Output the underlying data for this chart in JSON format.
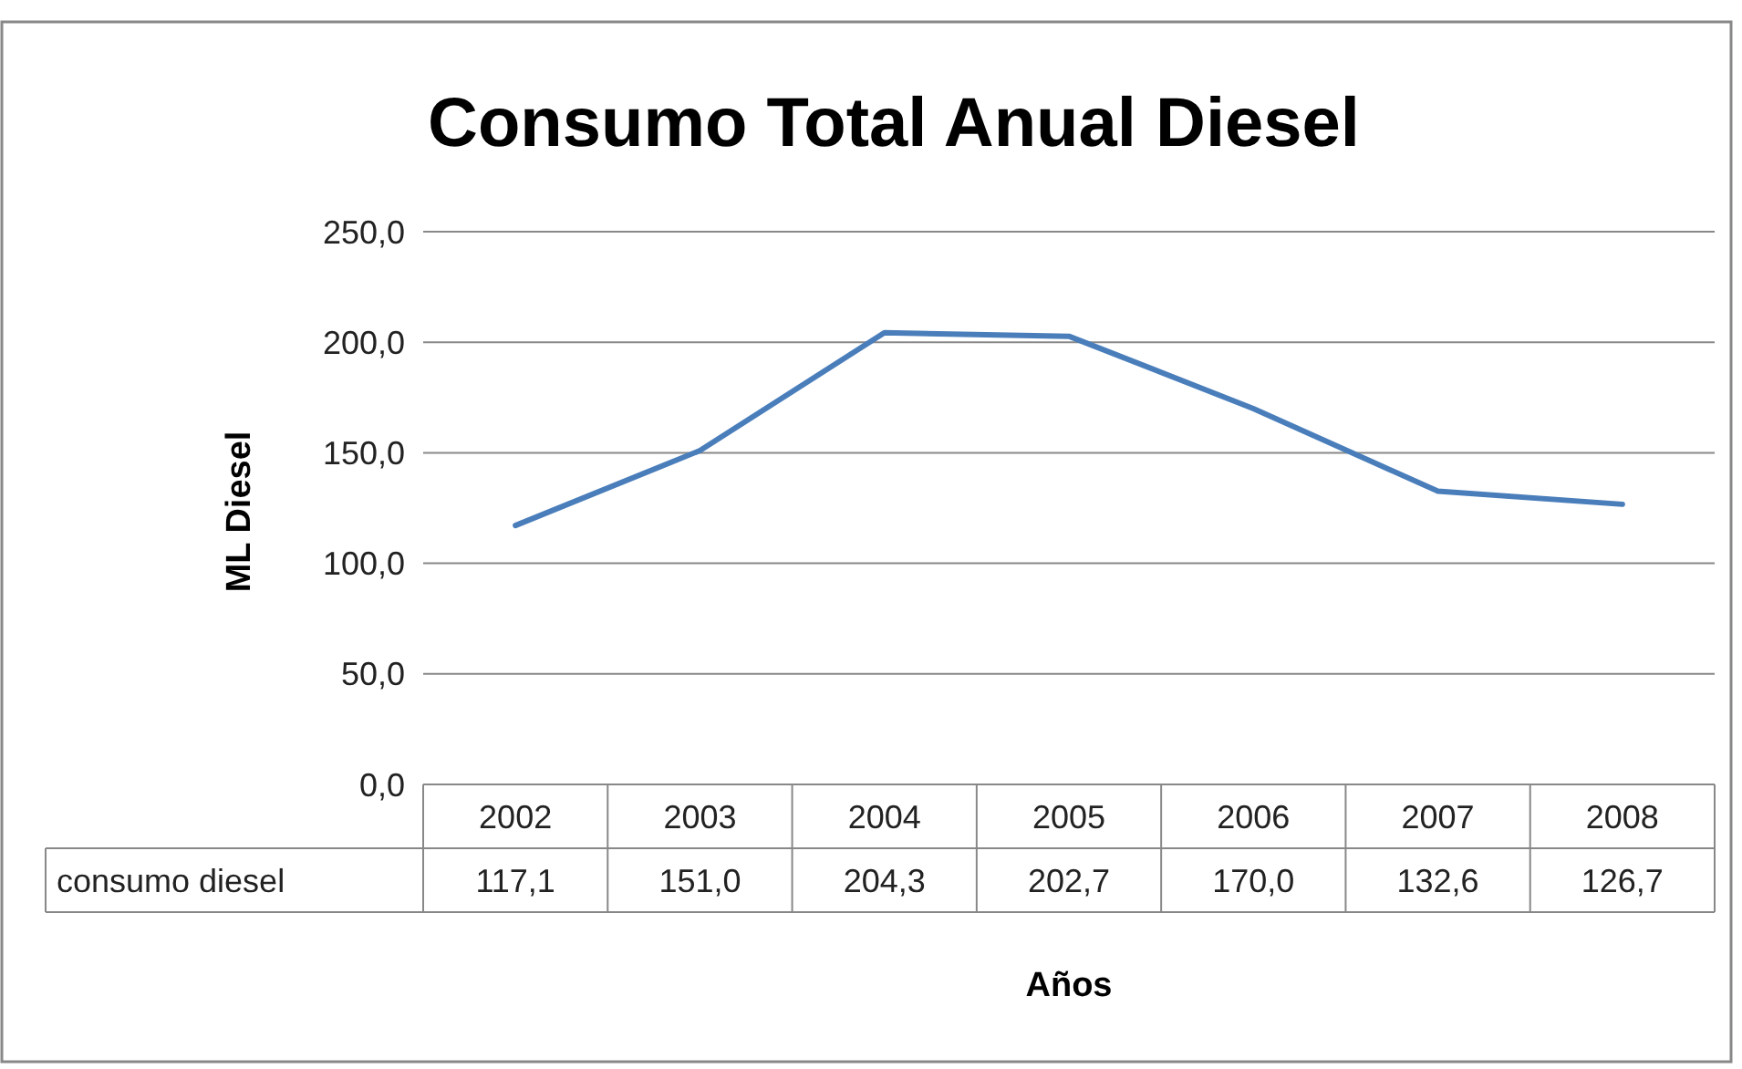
{
  "chart_data": {
    "type": "line",
    "title": "Consumo Total Anual Diesel",
    "xlabel": "Años",
    "ylabel": "ML Diesel",
    "categories": [
      "2002",
      "2003",
      "2004",
      "2005",
      "2006",
      "2007",
      "2008"
    ],
    "series": [
      {
        "name": "consumo diesel",
        "color": "#4a7ebb",
        "values": [
          117.1,
          151.0,
          204.3,
          202.7,
          170.0,
          132.6,
          126.7
        ],
        "value_labels": [
          "117,1",
          "151,0",
          "204,3",
          "202,7",
          "170,0",
          "132,6",
          "126,7"
        ]
      }
    ],
    "ylim": [
      0,
      250
    ],
    "yticks": [
      {
        "value": 0,
        "label": "0,0"
      },
      {
        "value": 50,
        "label": "50,0"
      },
      {
        "value": 100,
        "label": "100,0"
      },
      {
        "value": 150,
        "label": "150,0"
      },
      {
        "value": 200,
        "label": "200,0"
      },
      {
        "value": 250,
        "label": "250,0"
      }
    ],
    "grid": "y",
    "marker": "none",
    "line_style": "solid"
  }
}
